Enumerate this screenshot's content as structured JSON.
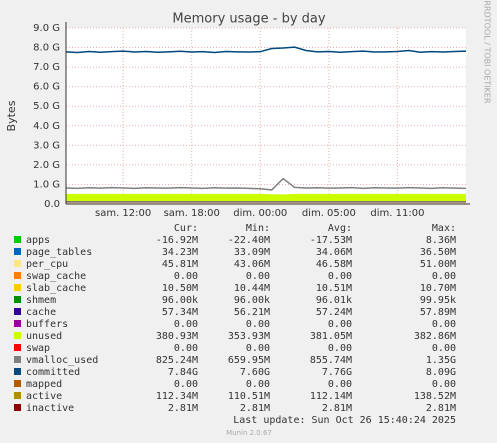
{
  "chart_data": {
    "type": "area",
    "title": "Memory usage - by day",
    "ylabel": "Bytes",
    "side_note": "RRDTOOL / TOBI OETIKER",
    "categories": [
      null,
      null,
      null,
      null,
      null,
      "sam. 12:00",
      null,
      null,
      null,
      null,
      null,
      "sam. 18:00",
      null,
      null,
      null,
      null,
      null,
      "dim. 00:00",
      null,
      null,
      null,
      null,
      null,
      "dim. 05:00",
      null,
      null,
      null,
      null,
      null,
      "dim. 11:00",
      null,
      null,
      null,
      null,
      null,
      null
    ],
    "ylim": [
      0,
      9
    ],
    "yticks": [
      {
        "value": 0,
        "label": "0.0"
      },
      {
        "value": 1,
        "label": "1.0 G"
      },
      {
        "value": 2,
        "label": "2.0 G"
      },
      {
        "value": 3,
        "label": "3.0 G"
      },
      {
        "value": 4,
        "label": "4.0 G"
      },
      {
        "value": 5,
        "label": "5.0 G"
      },
      {
        "value": 6,
        "label": "6.0 G"
      },
      {
        "value": 7,
        "label": "7.0 G"
      },
      {
        "value": 8,
        "label": "8.0 G"
      },
      {
        "value": 9,
        "label": "9.0 G"
      }
    ],
    "grid": true,
    "stats_headers": [
      "Cur:",
      "Min:",
      "Avg:",
      "Max:"
    ],
    "series": [
      {
        "name": "apps",
        "color": "#00cc00",
        "stats": [
          "-16.92M",
          "-22.40M",
          "-17.53M",
          "8.36M"
        ]
      },
      {
        "name": "page_tables",
        "color": "#0066b3",
        "stats": [
          "34.23M",
          "33.09M",
          "34.06M",
          "36.50M"
        ],
        "stack": true,
        "values": [
          0.034,
          0.034,
          0.034,
          0.034,
          0.034,
          0.034,
          0.034,
          0.034,
          0.034,
          0.034,
          0.034,
          0.034,
          0.034,
          0.034,
          0.034,
          0.034,
          0.034,
          0.034,
          0.034,
          0.034,
          0.034,
          0.034,
          0.034,
          0.034,
          0.034,
          0.034,
          0.034,
          0.034,
          0.034,
          0.034,
          0.034,
          0.034,
          0.034,
          0.034,
          0.034,
          0.034
        ]
      },
      {
        "name": "per_cpu",
        "color": "#ffe680",
        "stats": [
          "45.81M",
          "43.06M",
          "46.58M",
          "51.00M"
        ],
        "stack": true,
        "values": [
          0.046,
          0.046,
          0.046,
          0.046,
          0.046,
          0.046,
          0.046,
          0.046,
          0.046,
          0.046,
          0.046,
          0.046,
          0.046,
          0.046,
          0.046,
          0.046,
          0.046,
          0.046,
          0.046,
          0.046,
          0.046,
          0.046,
          0.046,
          0.046,
          0.046,
          0.046,
          0.046,
          0.046,
          0.046,
          0.046,
          0.046,
          0.046,
          0.046,
          0.046,
          0.046,
          0.046
        ]
      },
      {
        "name": "swap_cache",
        "color": "#ff8000",
        "stats": [
          "0.00",
          "0.00",
          "0.00",
          "0.00"
        ]
      },
      {
        "name": "slab_cache",
        "color": "#ffcc00",
        "stats": [
          "10.50M",
          "10.44M",
          "10.51M",
          "10.70M"
        ]
      },
      {
        "name": "shmem",
        "color": "#008f00",
        "stats": [
          "96.00k",
          "96.00k",
          "96.01k",
          "99.95k"
        ]
      },
      {
        "name": "cache",
        "color": "#330099",
        "stats": [
          "57.34M",
          "56.21M",
          "57.24M",
          "57.89M"
        ],
        "stack": true,
        "values": [
          0.057,
          0.057,
          0.057,
          0.057,
          0.057,
          0.057,
          0.057,
          0.057,
          0.057,
          0.057,
          0.057,
          0.057,
          0.057,
          0.057,
          0.057,
          0.057,
          0.057,
          0.057,
          0.057,
          0.057,
          0.057,
          0.057,
          0.057,
          0.057,
          0.057,
          0.057,
          0.057,
          0.057,
          0.057,
          0.057,
          0.057,
          0.057,
          0.057,
          0.057,
          0.057,
          0.057
        ]
      },
      {
        "name": "buffers",
        "color": "#990099",
        "stats": [
          "0.00",
          "0.00",
          "0.00",
          "0.00"
        ]
      },
      {
        "name": "unused",
        "color": "#ccff00",
        "stats": [
          "380.93M",
          "353.93M",
          "381.05M",
          "382.86M"
        ],
        "stack": true,
        "values": [
          0.38,
          0.38,
          0.38,
          0.38,
          0.38,
          0.38,
          0.38,
          0.38,
          0.38,
          0.38,
          0.38,
          0.38,
          0.38,
          0.38,
          0.38,
          0.38,
          0.38,
          0.38,
          0.36,
          0.35,
          0.38,
          0.38,
          0.38,
          0.38,
          0.38,
          0.38,
          0.38,
          0.38,
          0.38,
          0.38,
          0.38,
          0.38,
          0.38,
          0.38,
          0.38,
          0.38
        ]
      },
      {
        "name": "swap",
        "color": "#ff0000",
        "stats": [
          "0.00",
          "0.00",
          "0.00",
          "0.00"
        ]
      },
      {
        "name": "vmalloc_used",
        "color": "#808080",
        "stats": [
          "825.24M",
          "659.95M",
          "855.74M",
          "1.35G"
        ],
        "values": [
          0.82,
          0.8,
          0.83,
          0.81,
          0.84,
          0.82,
          0.8,
          0.83,
          0.82,
          0.81,
          0.84,
          0.82,
          0.8,
          0.83,
          0.81,
          0.82,
          0.8,
          0.78,
          0.72,
          1.3,
          0.85,
          0.82,
          0.83,
          0.81,
          0.82,
          0.84,
          0.8,
          0.83,
          0.82,
          0.81,
          0.84,
          0.82,
          0.8,
          0.83,
          0.81,
          0.8
        ]
      },
      {
        "name": "committed",
        "color": "#00487d",
        "stats": [
          "7.84G",
          "7.60G",
          "7.76G",
          "8.09G"
        ],
        "values": [
          7.78,
          7.75,
          7.8,
          7.76,
          7.79,
          7.82,
          7.77,
          7.8,
          7.76,
          7.78,
          7.81,
          7.77,
          7.79,
          7.75,
          7.8,
          7.78,
          7.77,
          7.79,
          7.95,
          7.98,
          8.02,
          7.85,
          7.78,
          7.8,
          7.76,
          7.79,
          7.82,
          7.77,
          7.78,
          7.8,
          7.85,
          7.76,
          7.79,
          7.77,
          7.8,
          7.82
        ]
      },
      {
        "name": "mapped",
        "color": "#b35a00",
        "stats": [
          "0.00",
          "0.00",
          "0.00",
          "0.00"
        ]
      },
      {
        "name": "active",
        "color": "#b38f00",
        "stats": [
          "112.34M",
          "110.51M",
          "112.14M",
          "138.52M"
        ]
      },
      {
        "name": "inactive",
        "color": "#8f0000",
        "stats": [
          "2.81M",
          "2.81M",
          "2.81M",
          "2.81M"
        ]
      }
    ],
    "last_update": "Last update: Sun Oct 26 15:40:24 2025",
    "footer": "Munin 2.0.67"
  }
}
